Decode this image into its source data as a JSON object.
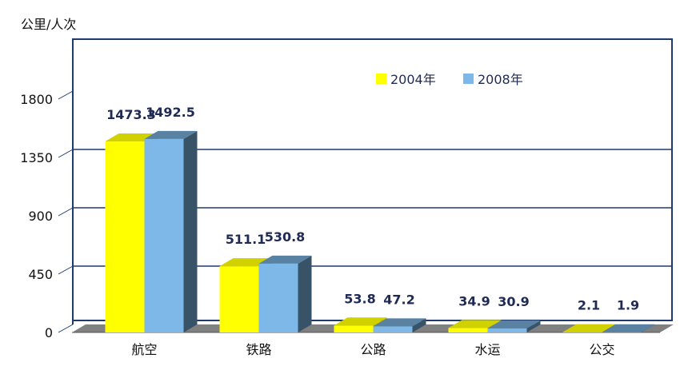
{
  "chart_data": {
    "type": "bar",
    "unit_label": "公里/人次",
    "categories": [
      "航空",
      "铁路",
      "公路",
      "水运",
      "公交"
    ],
    "series": [
      {
        "name": "2004年",
        "values": [
          1473.3,
          511.1,
          53.8,
          34.9,
          2.1
        ],
        "labels": [
          "1473.3",
          "511.1",
          "53.8",
          "34.9",
          "2.1"
        ],
        "color": "#ffff00"
      },
      {
        "name": "2008年",
        "values": [
          1492.5,
          530.8,
          47.2,
          30.9,
          1.9
        ],
        "labels": [
          "1492.5",
          "530.8",
          "47.2",
          "30.9",
          "1.9"
        ],
        "color": "#7db8e8"
      }
    ],
    "ylim": [
      0,
      1800
    ],
    "yticks": [
      "0",
      "450",
      "900",
      "1350",
      "1800"
    ],
    "grid": true,
    "legend_position": "top-right",
    "colors": {
      "plot_border": "#1f3a6e",
      "floor": "#808080",
      "gridline": "#1f3a6e"
    }
  }
}
